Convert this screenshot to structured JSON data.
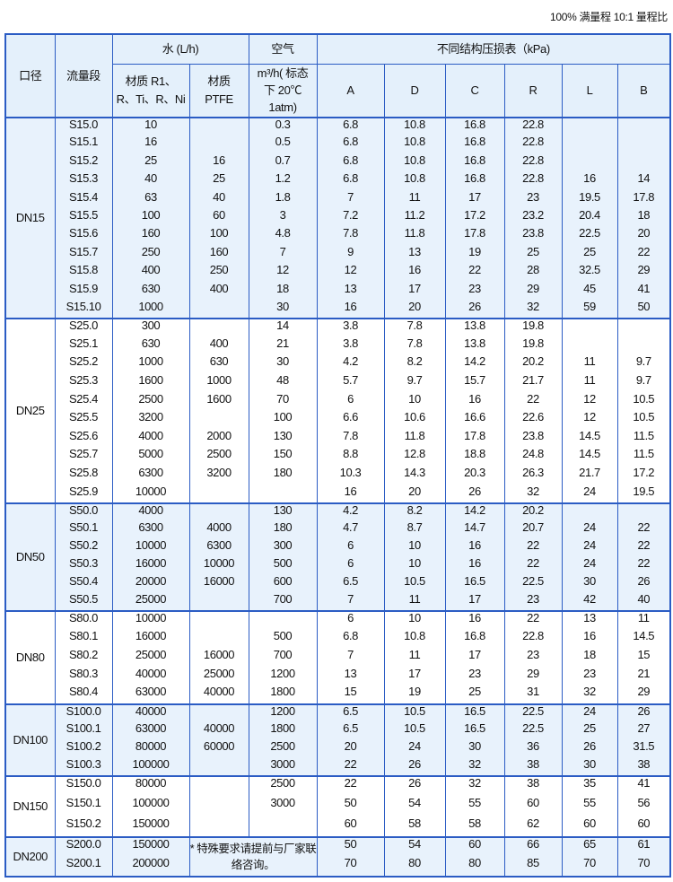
{
  "caption": "100% 满量程  10:1 量程比",
  "header": {
    "caliber": "口径",
    "flow_range": "流量段",
    "water": "水 (L/h)",
    "air": "空气",
    "pressure_loss": "不同结构压损表（kPa)",
    "water_r1": "材质 R1、R、Ti、R、Ni",
    "water_ptfe": "材质 PTFE",
    "air_unit": "m³/h( 标态下 20℃ 1atm)",
    "structures": [
      "A",
      "D",
      "C",
      "R",
      "L",
      "B"
    ]
  },
  "groups": [
    {
      "dn": "DN15",
      "shade": "blue",
      "rows": [
        [
          "S15.0",
          "10",
          "",
          "0.3",
          "6.8",
          "10.8",
          "16.8",
          "22.8",
          "",
          ""
        ],
        [
          "S15.1",
          "16",
          "",
          "0.5",
          "6.8",
          "10.8",
          "16.8",
          "22.8",
          "",
          ""
        ],
        [
          "S15.2",
          "25",
          "16",
          "0.7",
          "6.8",
          "10.8",
          "16.8",
          "22.8",
          "",
          ""
        ],
        [
          "S15.3",
          "40",
          "25",
          "1.2",
          "6.8",
          "10.8",
          "16.8",
          "22.8",
          "16",
          "14"
        ],
        [
          "S15.4",
          "63",
          "40",
          "1.8",
          "7",
          "11",
          "17",
          "23",
          "19.5",
          "17.8"
        ],
        [
          "S15.5",
          "100",
          "60",
          "3",
          "7.2",
          "11.2",
          "17.2",
          "23.2",
          "20.4",
          "18"
        ],
        [
          "S15.6",
          "160",
          "100",
          "4.8",
          "7.8",
          "11.8",
          "17.8",
          "23.8",
          "22.5",
          "20"
        ],
        [
          "S15.7",
          "250",
          "160",
          "7",
          "9",
          "13",
          "19",
          "25",
          "25",
          "22"
        ],
        [
          "S15.8",
          "400",
          "250",
          "12",
          "12",
          "16",
          "22",
          "28",
          "32.5",
          "29"
        ],
        [
          "S15.9",
          "630",
          "400",
          "18",
          "13",
          "17",
          "23",
          "29",
          "45",
          "41"
        ],
        [
          "S15.10",
          "1000",
          "",
          "30",
          "16",
          "20",
          "26",
          "32",
          "59",
          "50"
        ]
      ]
    },
    {
      "dn": "DN25",
      "shade": "white",
      "rows": [
        [
          "S25.0",
          "300",
          "",
          "14",
          "3.8",
          "7.8",
          "13.8",
          "19.8",
          "",
          ""
        ],
        [
          "S25.1",
          "630",
          "400",
          "21",
          "3.8",
          "7.8",
          "13.8",
          "19.8",
          "",
          ""
        ],
        [
          "S25.2",
          "1000",
          "630",
          "30",
          "4.2",
          "8.2",
          "14.2",
          "20.2",
          "11",
          "9.7"
        ],
        [
          "S25.3",
          "1600",
          "1000",
          "48",
          "5.7",
          "9.7",
          "15.7",
          "21.7",
          "11",
          "9.7"
        ],
        [
          "S25.4",
          "2500",
          "1600",
          "70",
          "6",
          "10",
          "16",
          "22",
          "12",
          "10.5"
        ],
        [
          "S25.5",
          "3200",
          "",
          "100",
          "6.6",
          "10.6",
          "16.6",
          "22.6",
          "12",
          "10.5"
        ],
        [
          "S25.6",
          "4000",
          "2000",
          "130",
          "7.8",
          "11.8",
          "17.8",
          "23.8",
          "14.5",
          "11.5"
        ],
        [
          "S25.7",
          "5000",
          "2500",
          "150",
          "8.8",
          "12.8",
          "18.8",
          "24.8",
          "14.5",
          "11.5"
        ],
        [
          "S25.8",
          "6300",
          "3200",
          "180",
          "10.3",
          "14.3",
          "20.3",
          "26.3",
          "21.7",
          "17.2"
        ],
        [
          "S25.9",
          "10000",
          "",
          "",
          "16",
          "20",
          "26",
          "32",
          "24",
          "19.5"
        ]
      ]
    },
    {
      "dn": "DN50",
      "shade": "blue",
      "rows": [
        [
          "S50.0",
          "4000",
          "",
          "130",
          "4.2",
          "8.2",
          "14.2",
          "20.2",
          "",
          ""
        ],
        [
          "S50.1",
          "6300",
          "4000",
          "180",
          "4.7",
          "8.7",
          "14.7",
          "20.7",
          "24",
          "22"
        ],
        [
          "S50.2",
          "10000",
          "6300",
          "300",
          "6",
          "10",
          "16",
          "22",
          "24",
          "22"
        ],
        [
          "S50.3",
          "16000",
          "10000",
          "500",
          "6",
          "10",
          "16",
          "22",
          "24",
          "22"
        ],
        [
          "S50.4",
          "20000",
          "16000",
          "600",
          "6.5",
          "10.5",
          "16.5",
          "22.5",
          "30",
          "26"
        ],
        [
          "S50.5",
          "25000",
          "",
          "700",
          "7",
          "11",
          "17",
          "23",
          "42",
          "40"
        ]
      ]
    },
    {
      "dn": "DN80",
      "shade": "white",
      "rows": [
        [
          "S80.0",
          "10000",
          "",
          "",
          "6",
          "10",
          "16",
          "22",
          "13",
          "11"
        ],
        [
          "S80.1",
          "16000",
          "",
          "500",
          "6.8",
          "10.8",
          "16.8",
          "22.8",
          "16",
          "14.5"
        ],
        [
          "S80.2",
          "25000",
          "16000",
          "700",
          "7",
          "11",
          "17",
          "23",
          "18",
          "15"
        ],
        [
          "S80.3",
          "40000",
          "25000",
          "1200",
          "13",
          "17",
          "23",
          "29",
          "23",
          "21"
        ],
        [
          "S80.4",
          "63000",
          "40000",
          "1800",
          "15",
          "19",
          "25",
          "31",
          "32",
          "29"
        ]
      ]
    },
    {
      "dn": "DN100",
      "shade": "blue",
      "rows": [
        [
          "S100.0",
          "40000",
          "",
          "1200",
          "6.5",
          "10.5",
          "16.5",
          "22.5",
          "24",
          "26"
        ],
        [
          "S100.1",
          "63000",
          "40000",
          "1800",
          "6.5",
          "10.5",
          "16.5",
          "22.5",
          "25",
          "27"
        ],
        [
          "S100.2",
          "80000",
          "60000",
          "2500",
          "20",
          "24",
          "30",
          "36",
          "26",
          "31.5"
        ],
        [
          "S100.3",
          "100000",
          "",
          "3000",
          "22",
          "26",
          "32",
          "38",
          "30",
          "38"
        ]
      ]
    },
    {
      "dn": "DN150",
      "shade": "white",
      "rows": [
        [
          "S150.0",
          "80000",
          "",
          "2500",
          "22",
          "26",
          "32",
          "38",
          "35",
          "41"
        ],
        [
          "S150.1",
          "100000",
          "",
          "3000",
          "50",
          "54",
          "55",
          "60",
          "55",
          "56"
        ],
        [
          "S150.2",
          "150000",
          "",
          "",
          "60",
          "58",
          "58",
          "62",
          "60",
          "60"
        ]
      ]
    },
    {
      "dn": "DN200",
      "shade": "blue",
      "note": "* 特殊要求请提前与厂家联络咨询。",
      "rows": [
        [
          "S200.0",
          "150000",
          "",
          "",
          "50",
          "54",
          "60",
          "66",
          "65",
          "61"
        ],
        [
          "S200.1",
          "200000",
          "",
          "",
          "70",
          "80",
          "80",
          "85",
          "70",
          "70"
        ]
      ]
    }
  ]
}
